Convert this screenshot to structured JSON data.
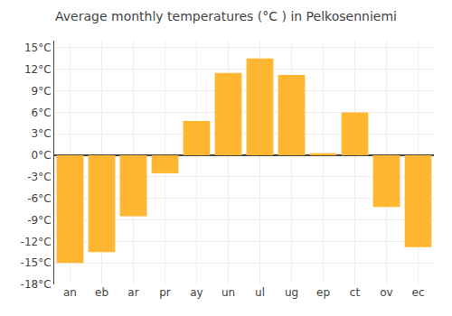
{
  "chart_data": {
    "type": "bar",
    "title": "Average monthly temperatures (°C ) in Pelkosenniemi",
    "categories": [
      "an",
      "eb",
      "ar",
      "pr",
      "ay",
      "un",
      "ul",
      "ug",
      "ep",
      "ct",
      "ov",
      "ec"
    ],
    "values": [
      -15.0,
      -13.5,
      -8.5,
      -2.5,
      4.8,
      11.5,
      13.5,
      11.2,
      0.3,
      6.0,
      -7.2,
      -12.8
    ],
    "color": "#FFB732",
    "ylim": [
      -18,
      16
    ],
    "yticks": [
      {
        "value": -18,
        "label": "-18°C"
      },
      {
        "value": -15,
        "label": "-15°C"
      },
      {
        "value": -12,
        "label": "-12°C"
      },
      {
        "value": -9,
        "label": "-9°C"
      },
      {
        "value": -6,
        "label": "-6°C"
      },
      {
        "value": -3,
        "label": "-3°C"
      },
      {
        "value": 0,
        "label": "0°C"
      },
      {
        "value": 3,
        "label": "3°C"
      },
      {
        "value": 6,
        "label": "6°C"
      },
      {
        "value": 9,
        "label": "9°C"
      },
      {
        "value": 12,
        "label": "12°C"
      },
      {
        "value": 15,
        "label": "15°C"
      }
    ],
    "grid": true
  }
}
